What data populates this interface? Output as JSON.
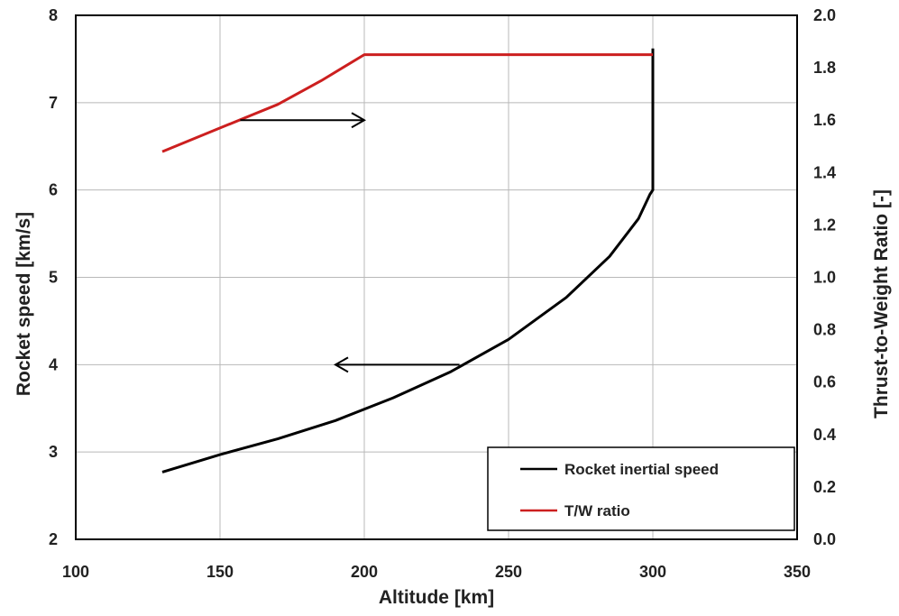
{
  "chart_data": {
    "type": "line",
    "xlabel": "Altitude [km]",
    "ylabel_left": "Rocket speed [km/s]",
    "ylabel_right": "Thrust-to-Weight Ratio [-]",
    "xlim": [
      100,
      350
    ],
    "ylim_left": [
      2,
      8
    ],
    "ylim_right": [
      0,
      2
    ],
    "x_ticks": [
      "100",
      "150",
      "200",
      "250",
      "300",
      "350"
    ],
    "y_left_ticks": [
      "2",
      "3",
      "4",
      "5",
      "6",
      "7",
      "8"
    ],
    "y_right_ticks": [
      "0.0",
      "0.2",
      "0.4",
      "0.6",
      "0.8",
      "1.0",
      "1.2",
      "1.4",
      "1.6",
      "1.8",
      "2.0"
    ],
    "grid": true,
    "legend_position": "bottom-right",
    "series": [
      {
        "name": "Rocket inertial speed",
        "axis": "left",
        "color": "#000000",
        "x": [
          130,
          150,
          170,
          190,
          210,
          230,
          250,
          270,
          285,
          295,
          299,
          300,
          300
        ],
        "y": [
          2.77,
          2.97,
          3.15,
          3.36,
          3.62,
          3.92,
          4.29,
          4.77,
          5.24,
          5.67,
          5.95,
          6.0,
          7.62
        ]
      },
      {
        "name": "T/W ratio",
        "axis": "right",
        "color": "#cc1f1f",
        "x": [
          130,
          150,
          170,
          185,
          200,
          250,
          300
        ],
        "y": [
          1.48,
          1.57,
          1.66,
          1.75,
          1.85,
          1.85,
          1.85
        ]
      }
    ],
    "annotations": [
      {
        "type": "arrow",
        "direction": "right",
        "x_from": 157,
        "x_to": 200,
        "y": 1.6,
        "axis": "right"
      },
      {
        "type": "arrow",
        "direction": "left",
        "x_from": 233,
        "x_to": 190,
        "y": 4.0,
        "axis": "left"
      }
    ]
  }
}
